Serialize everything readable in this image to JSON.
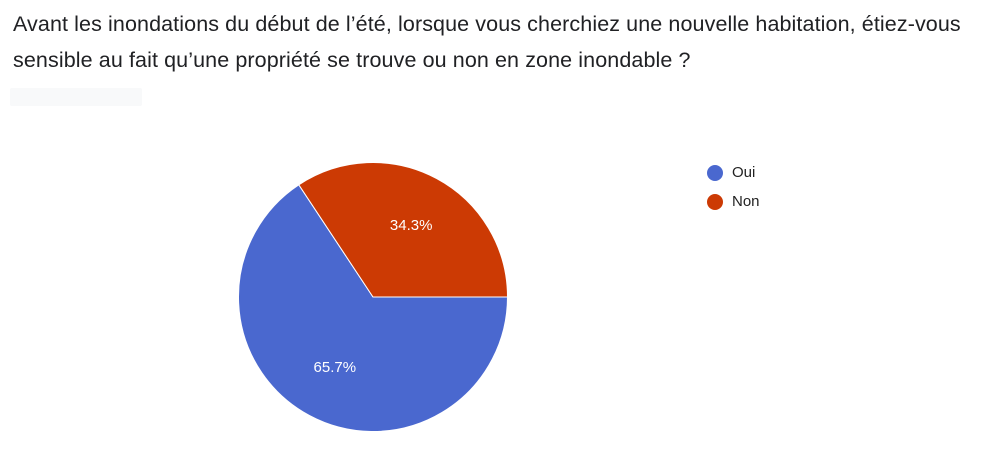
{
  "question": {
    "title": "Avant les inondations du début de l’été, lorsque vous cherchiez une nouvelle habitation, étiez-vous sensible au fait qu’une propriété se trouve ou non en zone inondable ?"
  },
  "chart_data": {
    "type": "pie",
    "title": "",
    "legend_position": "right",
    "categories": [
      "Oui",
      "Non"
    ],
    "values": [
      65.7,
      34.3
    ],
    "labels": [
      "65.7%",
      "34.3%"
    ],
    "colors": [
      "#4a68cf",
      "#cc3a04"
    ]
  }
}
